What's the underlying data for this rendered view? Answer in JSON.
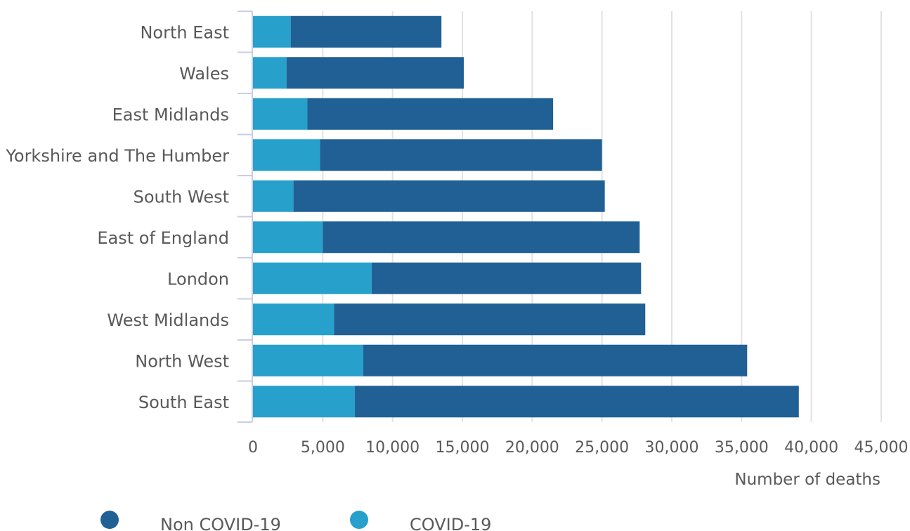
{
  "chart_data": {
    "type": "bar",
    "orientation": "horizontal",
    "stacked": true,
    "categories": [
      "North East",
      "Wales",
      "East Midlands",
      "Yorkshire and The Humber",
      "South West",
      "East of England",
      "London",
      "West Midlands",
      "North West",
      "South East"
    ],
    "series": [
      {
        "name": "COVID-19",
        "color": "#27a0cc",
        "values": [
          2700,
          2400,
          3900,
          4800,
          2900,
          5000,
          8500,
          5800,
          7900,
          7300
        ]
      },
      {
        "name": "Non COVID-19",
        "color": "#206095",
        "values": [
          10800,
          12700,
          17600,
          20200,
          22300,
          22700,
          19300,
          22300,
          27500,
          31800
        ]
      }
    ],
    "xlabel": "Number of deaths",
    "ylabel": "",
    "xlim": [
      0,
      45000
    ],
    "x_ticks": [
      "0",
      "5,000",
      "10,000",
      "15,000",
      "20,000",
      "25,000",
      "30,000",
      "35,000",
      "40,000",
      "45,000"
    ],
    "x_tick_values": [
      0,
      5000,
      10000,
      15000,
      20000,
      25000,
      30000,
      35000,
      40000,
      45000
    ],
    "grid": "vertical",
    "legend": {
      "position": "bottom-left",
      "entries": [
        {
          "label": "Non COVID-19",
          "color": "#206095"
        },
        {
          "label": "COVID-19",
          "color": "#27a0cc"
        }
      ]
    },
    "title": ""
  }
}
